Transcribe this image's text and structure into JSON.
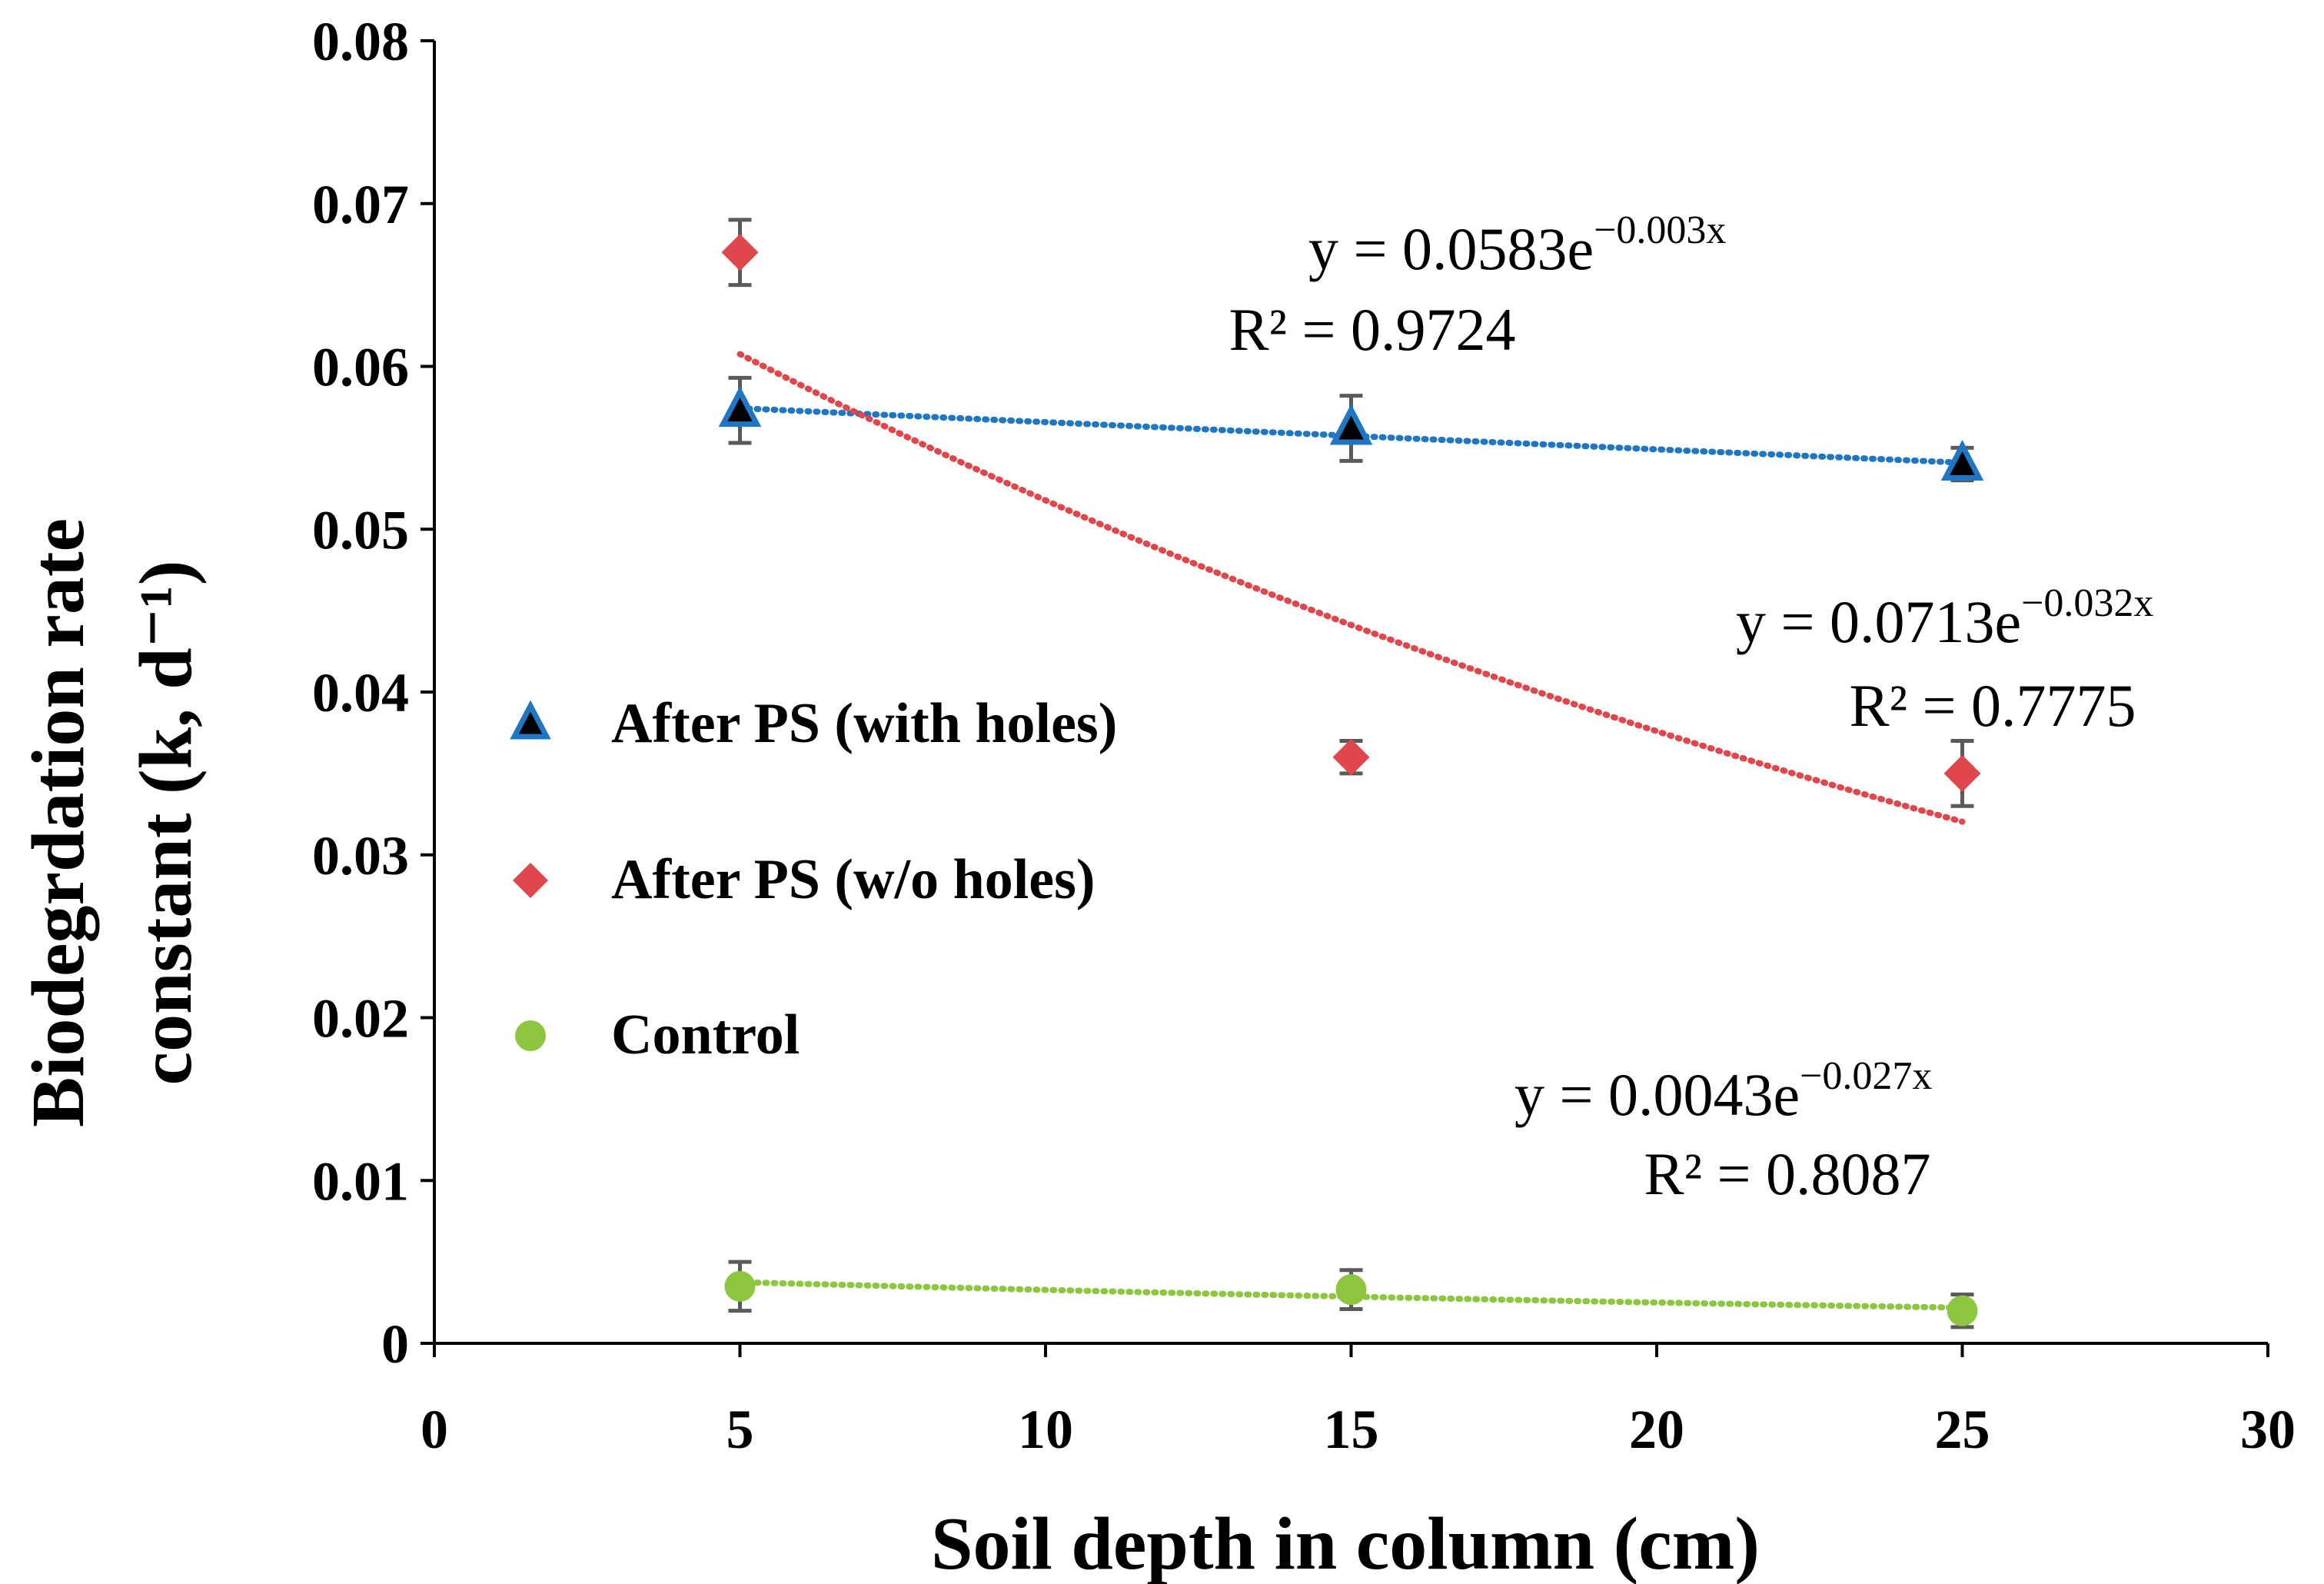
{
  "chart_data": {
    "type": "scatter",
    "xlabel": "Soil depth in column (cm)",
    "ylabel_line1": "Biodegrdation rate",
    "ylabel_line2": "constant (k, d⁻¹)",
    "xlim": [
      0,
      30
    ],
    "ylim": [
      0,
      0.08
    ],
    "x_ticks": [
      "0",
      "5",
      "10",
      "15",
      "20",
      "25",
      "30"
    ],
    "y_ticks": [
      "0",
      "0.01",
      "0.02",
      "0.03",
      "0.04",
      "0.05",
      "0.06",
      "0.07",
      "0.08"
    ],
    "grid": false,
    "legend_position": "left-middle",
    "series": [
      {
        "name": "After PS (with holes)",
        "marker": "triangle",
        "color": "#1F77C4",
        "x": [
          5,
          15,
          25
        ],
        "y": [
          0.0573,
          0.0562,
          0.054
        ],
        "err": [
          0.002,
          0.002,
          0.001
        ],
        "trend": {
          "a": 0.0583,
          "b": -0.003,
          "color": "#1F77C4"
        },
        "equation": {
          "prefix": "y = 0.0583e",
          "exponent": "−0.003x",
          "r2": "R² = 0.9724"
        }
      },
      {
        "name": "After PS (w/o holes)",
        "marker": "diamond",
        "color": "#E0474C",
        "x": [
          5,
          15,
          25
        ],
        "y": [
          0.067,
          0.036,
          0.035
        ],
        "err": [
          0.002,
          0.001,
          0.002
        ],
        "trend": {
          "a": 0.0713,
          "b": -0.032,
          "color": "#E0474C"
        },
        "equation": {
          "prefix": "y = 0.0713e",
          "exponent": "−0.032x",
          "r2": "R² = 0.7775"
        }
      },
      {
        "name": "Control",
        "marker": "circle",
        "color": "#8DC63F",
        "x": [
          5,
          15,
          25
        ],
        "y": [
          0.0035,
          0.0033,
          0.002
        ],
        "err": [
          0.0015,
          0.0012,
          0.001
        ],
        "trend": {
          "a": 0.0043,
          "b": -0.027,
          "color": "#8DC63F"
        },
        "equation": {
          "prefix": "y = 0.0043e",
          "exponent": "−0.027x",
          "r2": "R² = 0.8087"
        }
      }
    ]
  }
}
